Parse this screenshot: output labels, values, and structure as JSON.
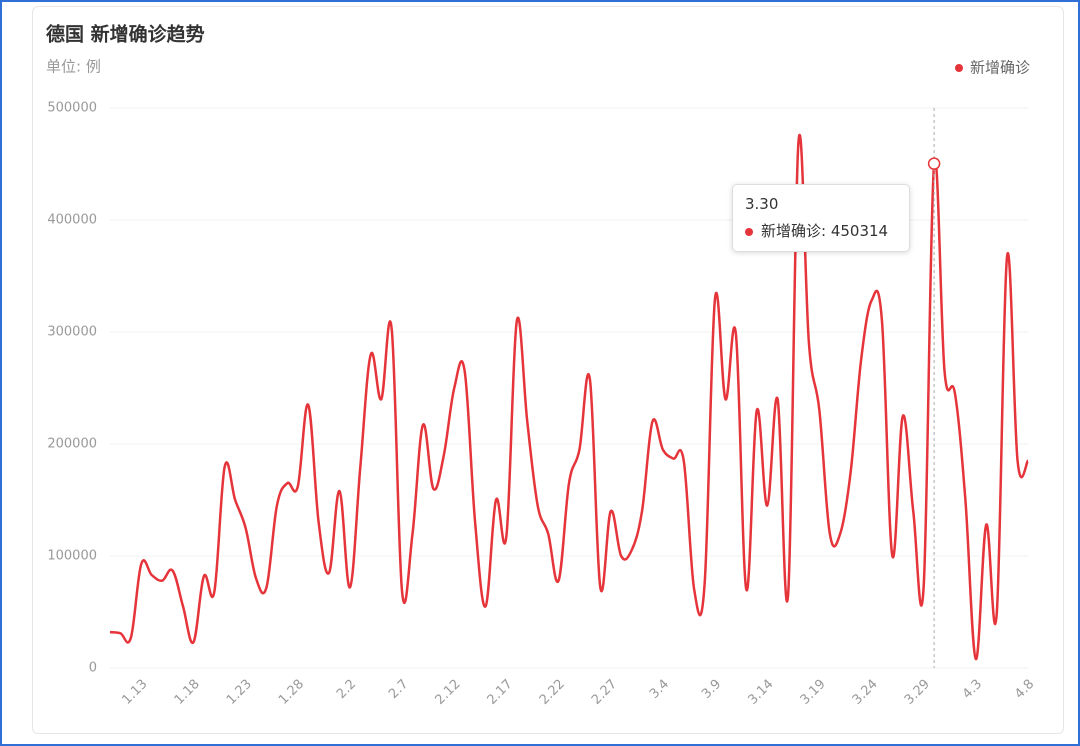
{
  "chart_data": {
    "type": "line",
    "title": "德国 新增确诊趋势",
    "subtitle": "单位: 例",
    "categories": [
      null,
      null,
      null,
      "1.13",
      null,
      null,
      null,
      null,
      "1.18",
      null,
      null,
      null,
      null,
      "1.23",
      null,
      null,
      null,
      null,
      "1.28",
      null,
      null,
      null,
      null,
      "2.2",
      null,
      null,
      null,
      null,
      "2.7",
      null,
      null,
      null,
      null,
      "2.12",
      null,
      null,
      null,
      null,
      "2.17",
      null,
      null,
      null,
      null,
      "2.22",
      null,
      null,
      null,
      null,
      "2.27",
      null,
      null,
      null,
      null,
      "3.4",
      null,
      null,
      null,
      null,
      "3.9",
      null,
      null,
      null,
      null,
      "3.14",
      null,
      null,
      null,
      null,
      "3.19",
      null,
      null,
      null,
      null,
      "3.24",
      null,
      null,
      null,
      null,
      "3.29",
      "3.30",
      null,
      null,
      null,
      "4.3",
      null,
      null,
      null,
      null,
      "4.8"
    ],
    "series": [
      {
        "name": "新增确诊",
        "color": "#e5343a",
        "values": [
          32000,
          31000,
          27000,
          93000,
          83000,
          78000,
          87000,
          55000,
          23000,
          82000,
          68000,
          180000,
          150000,
          125000,
          80000,
          72000,
          145000,
          165000,
          162000,
          235000,
          130000,
          85000,
          158000,
          72000,
          180000,
          280000,
          240000,
          303000,
          68000,
          120000,
          217000,
          160000,
          190000,
          250000,
          265000,
          130000,
          55000,
          150000,
          118000,
          310000,
          220000,
          145000,
          120000,
          78000,
          165000,
          195000,
          258000,
          72000,
          140000,
          100000,
          105000,
          140000,
          220000,
          195000,
          187000,
          185000,
          70000,
          75000,
          330000,
          240000,
          298000,
          70000,
          230000,
          145000,
          240000,
          65000,
          470000,
          290000,
          230000,
          120000,
          120000,
          175000,
          275000,
          328000,
          310000,
          100000,
          225000,
          140000,
          73000,
          450314,
          265000,
          245000,
          150000,
          8000,
          128000,
          48000,
          368000,
          185000,
          185000
        ]
      }
    ],
    "ylim": [
      0,
      500000
    ],
    "yticks": [
      0,
      100000,
      200000,
      300000,
      400000,
      500000
    ],
    "grid": true,
    "legend": "top-right",
    "tooltip_index": 79
  }
}
